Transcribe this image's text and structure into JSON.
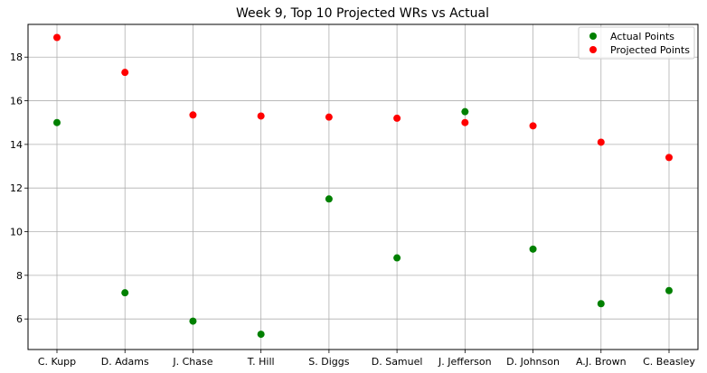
{
  "chart_data": {
    "type": "scatter",
    "title": "Week 9, Top 10 Projected WRs vs Actual",
    "xlabel": "",
    "ylabel": "",
    "categories": [
      "C. Kupp",
      "D. Adams",
      "J. Chase",
      "T. Hill",
      "S. Diggs",
      "D. Samuel",
      "J. Jefferson",
      "D. Johnson",
      "A.J. Brown",
      "C. Beasley"
    ],
    "ylim": [
      4.6,
      19.5
    ],
    "yticks": [
      6,
      8,
      10,
      12,
      14,
      16,
      18
    ],
    "grid": true,
    "legend_position": "top-right",
    "series": [
      {
        "name": "Actual Points",
        "color": "#008000",
        "values": [
          15.0,
          7.2,
          5.9,
          5.3,
          11.5,
          8.8,
          15.5,
          9.2,
          6.7,
          7.3
        ]
      },
      {
        "name": "Projected Points",
        "color": "#ff0000",
        "values": [
          18.9,
          17.3,
          15.35,
          15.3,
          15.25,
          15.2,
          15.0,
          14.85,
          14.1,
          13.4
        ]
      }
    ]
  }
}
